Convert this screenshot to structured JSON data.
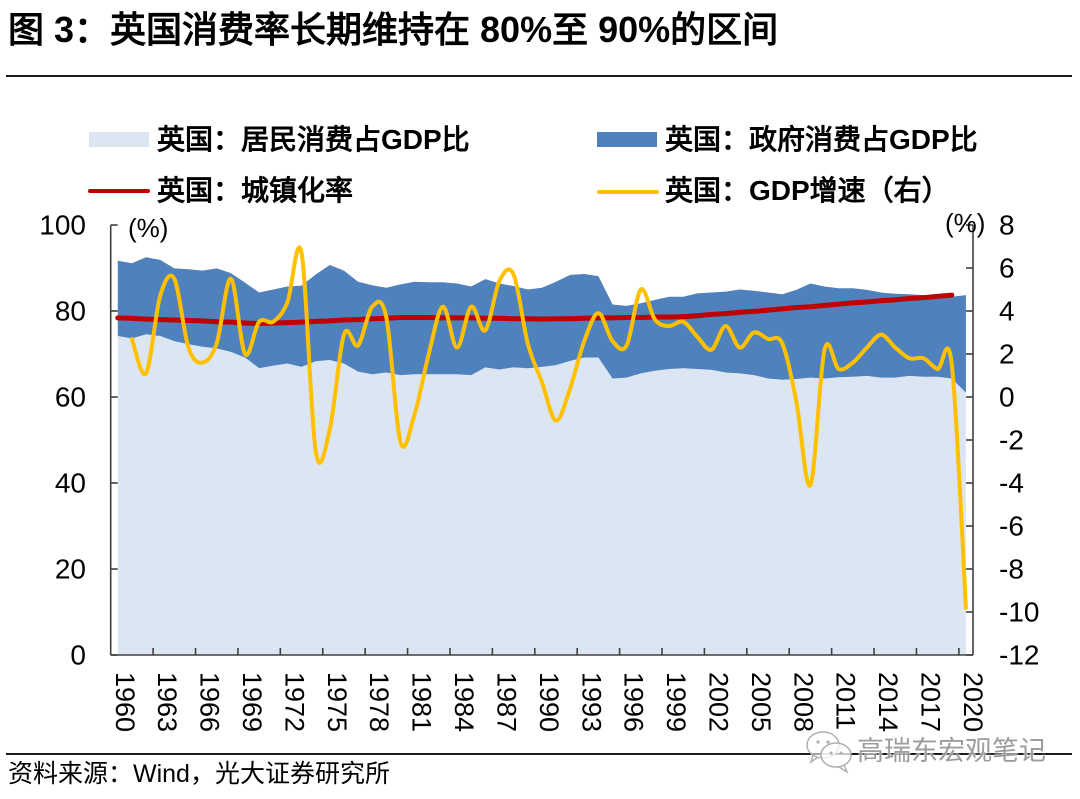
{
  "title": "图 3：英国消费率长期维持在 80%至 90%的区间",
  "footer": {
    "source": "资料来源：Wind，光大证券研究所"
  },
  "watermark": {
    "text": "高瑞东宏观笔记",
    "icon": "wechat-icon"
  },
  "colors": {
    "household": "#DCE6F2",
    "government": "#4F81BD",
    "urbanization": "#C00000",
    "gdp": "#FFC000",
    "axis": "#404040",
    "rule": "#1a1a1a"
  },
  "chart_data": {
    "type": "area",
    "title": "图 3：英国消费率长期维持在 80%至 90%的区间",
    "legend_position": "top",
    "grid": false,
    "years": [
      1960,
      1961,
      1962,
      1963,
      1964,
      1965,
      1966,
      1967,
      1968,
      1969,
      1970,
      1971,
      1972,
      1973,
      1974,
      1975,
      1976,
      1977,
      1978,
      1979,
      1980,
      1981,
      1982,
      1983,
      1984,
      1985,
      1986,
      1987,
      1988,
      1989,
      1990,
      1991,
      1992,
      1993,
      1994,
      1995,
      1996,
      1997,
      1998,
      1999,
      2000,
      2001,
      2002,
      2003,
      2004,
      2005,
      2006,
      2007,
      2008,
      2009,
      2010,
      2011,
      2012,
      2013,
      2014,
      2015,
      2016,
      2017,
      2018,
      2019,
      2020
    ],
    "x_tick_labels": [
      "1960",
      "1963",
      "1966",
      "1969",
      "1972",
      "1975",
      "1978",
      "1981",
      "1984",
      "1987",
      "1990",
      "1993",
      "1996",
      "1999",
      "2002",
      "2005",
      "2008",
      "2011",
      "2014",
      "2017",
      "2020"
    ],
    "left_axis": {
      "unit": "(%)",
      "range": [
        0,
        100
      ],
      "ticks": [
        100,
        80,
        60,
        40,
        20,
        0
      ]
    },
    "right_axis": {
      "unit": "(%)",
      "range": [
        -12,
        8
      ],
      "ticks": [
        8,
        6,
        4,
        2,
        0,
        -2,
        -4,
        -6,
        -8,
        -10,
        -12
      ]
    },
    "series": [
      {
        "name": "英国：居民消费占GDP比",
        "type": "area",
        "axis": "left",
        "stacked": true,
        "values": [
          74.2,
          73.6,
          74.6,
          74.2,
          73.0,
          72.3,
          71.7,
          71.3,
          70.5,
          69.2,
          66.7,
          67.3,
          67.8,
          67.0,
          68.3,
          68.6,
          67.8,
          65.9,
          65.3,
          65.7,
          65.1,
          65.3,
          65.3,
          65.3,
          65.3,
          65.1,
          66.9,
          66.4,
          66.9,
          66.7,
          67.0,
          67.4,
          68.4,
          69.2,
          69.2,
          64.3,
          64.5,
          65.5,
          66.1,
          66.5,
          66.7,
          66.5,
          66.3,
          65.7,
          65.5,
          65.1,
          64.3,
          64.0,
          64.2,
          64.5,
          64.3,
          64.6,
          64.7,
          64.9,
          64.5,
          64.5,
          64.9,
          64.7,
          64.7,
          64.3,
          61.0
        ]
      },
      {
        "name": "英国：政府消费占GDP比",
        "type": "area",
        "axis": "left",
        "stacked": true,
        "values": [
          17.5,
          17.5,
          17.9,
          17.7,
          16.9,
          17.4,
          17.7,
          18.6,
          18.3,
          17.4,
          17.6,
          17.7,
          17.9,
          18.9,
          20.2,
          22.1,
          21.6,
          20.9,
          20.7,
          19.7,
          21.1,
          21.5,
          21.4,
          21.4,
          21.1,
          20.6,
          20.5,
          20.0,
          18.9,
          18.3,
          18.4,
          19.4,
          20.0,
          19.4,
          18.9,
          17.2,
          16.7,
          16.3,
          16.5,
          16.8,
          16.6,
          17.6,
          18.0,
          18.8,
          19.5,
          19.6,
          20.0,
          19.9,
          20.7,
          21.9,
          21.4,
          20.7,
          20.6,
          20.0,
          19.8,
          19.5,
          19.0,
          19.0,
          18.8,
          19.0,
          22.7
        ]
      },
      {
        "name": "英国：城镇化率",
        "type": "line",
        "axis": "left",
        "values": [
          78.4,
          78.3,
          78.1,
          78.0,
          77.9,
          77.8,
          77.7,
          77.5,
          77.4,
          77.2,
          77.1,
          77.2,
          77.3,
          77.4,
          77.6,
          77.7,
          77.9,
          78.0,
          78.2,
          78.3,
          78.5,
          78.5,
          78.5,
          78.4,
          78.4,
          78.4,
          78.3,
          78.3,
          78.2,
          78.2,
          78.1,
          78.2,
          78.2,
          78.3,
          78.4,
          78.4,
          78.5,
          78.5,
          78.6,
          78.6,
          78.7,
          78.9,
          79.2,
          79.4,
          79.7,
          79.9,
          80.2,
          80.5,
          80.8,
          81.0,
          81.3,
          81.6,
          81.9,
          82.1,
          82.4,
          82.6,
          82.9,
          83.1,
          83.4,
          83.7,
          null
        ]
      },
      {
        "name": "英国：GDP增速（右）",
        "type": "line",
        "axis": "right",
        "smooth": true,
        "values": [
          null,
          2.7,
          1.1,
          4.7,
          5.5,
          2.3,
          1.6,
          2.5,
          5.5,
          2.0,
          3.5,
          3.5,
          4.4,
          6.7,
          -2.5,
          -1.5,
          2.9,
          2.4,
          4.2,
          3.7,
          -2.1,
          -0.8,
          2.0,
          4.2,
          2.3,
          4.2,
          3.1,
          5.4,
          5.7,
          2.5,
          0.7,
          -1.1,
          0.4,
          2.6,
          3.9,
          2.6,
          2.4,
          5.0,
          3.6,
          3.3,
          3.5,
          2.8,
          2.2,
          3.3,
          2.3,
          3.0,
          2.7,
          2.5,
          -0.2,
          -4.1,
          2.2,
          1.3,
          1.6,
          2.3,
          2.9,
          2.3,
          1.8,
          1.8,
          1.3,
          1.5,
          -9.8
        ]
      }
    ]
  }
}
